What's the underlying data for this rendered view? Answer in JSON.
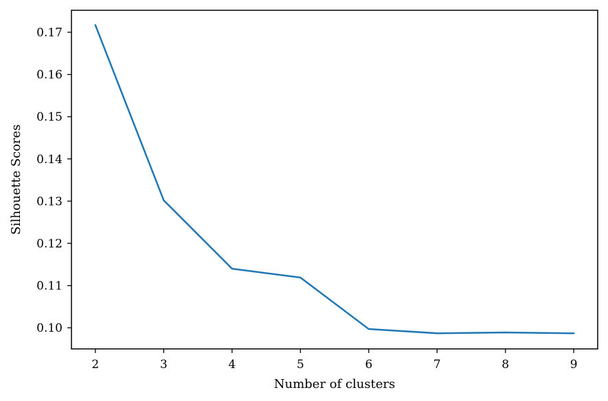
{
  "chart_data": {
    "type": "line",
    "title": "",
    "xlabel": "Number of clusters",
    "ylabel": "Silhouette Scores",
    "x": [
      2,
      3,
      4,
      5,
      6,
      7,
      8,
      9
    ],
    "series": [
      {
        "values": [
          0.1717,
          0.1302,
          0.114,
          0.1119,
          0.0997,
          0.0987,
          0.0989,
          0.0987
        ]
      }
    ],
    "xlim": [
      1.65,
      9.35
    ],
    "ylim": [
      0.095,
      0.1752
    ],
    "xticks": [
      "2",
      "3",
      "4",
      "5",
      "6",
      "7",
      "8",
      "9"
    ],
    "yticks": [
      "0.10",
      "0.11",
      "0.12",
      "0.13",
      "0.14",
      "0.15",
      "0.16",
      "0.17"
    ],
    "grid": false,
    "line_color": "#1f77b4"
  }
}
